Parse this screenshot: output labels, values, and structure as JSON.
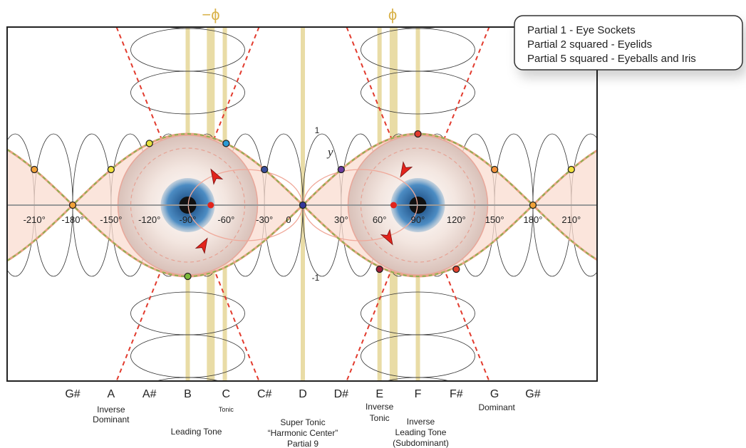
{
  "header": {
    "phi_left": "−ϕ",
    "phi_right": "ϕ"
  },
  "legend": [
    "Partial 1 - Eye Sockets",
    "Partial 2 squared - Eyelids",
    "Partial 5 squared - Eyeballs and Iris"
  ],
  "axis": {
    "y_top": "1",
    "y_bottom": "-1",
    "y_label": "y",
    "degrees": [
      "-210°",
      "-180°",
      "-150°",
      "-120°",
      "-90°",
      "-60°",
      "-30°",
      "0",
      "30°",
      "60°",
      "90°",
      "120°",
      "150°",
      "180°",
      "210°"
    ]
  },
  "notes": [
    {
      "name": "G#"
    },
    {
      "name": "A",
      "annotation": [
        "Inverse",
        "Dominant"
      ]
    },
    {
      "name": "A#"
    },
    {
      "name": "B",
      "annotation": [
        "Leading Tone"
      ]
    },
    {
      "name": "C",
      "annotation": [
        "Tonic"
      ]
    },
    {
      "name": "C#"
    },
    {
      "name": "D",
      "annotation": [
        "Super Tonic",
        "“Harmonic Center”",
        "Partial 9"
      ]
    },
    {
      "name": "D#"
    },
    {
      "name": "E",
      "annotation": [
        "Inverse",
        "Tonic"
      ]
    },
    {
      "name": "F",
      "annotation": [
        "Inverse",
        "Leading Tone",
        "(Subdominant)"
      ]
    },
    {
      "name": "F#"
    },
    {
      "name": "G",
      "annotation": [
        "Dominant"
      ]
    },
    {
      "name": "G#"
    }
  ]
}
